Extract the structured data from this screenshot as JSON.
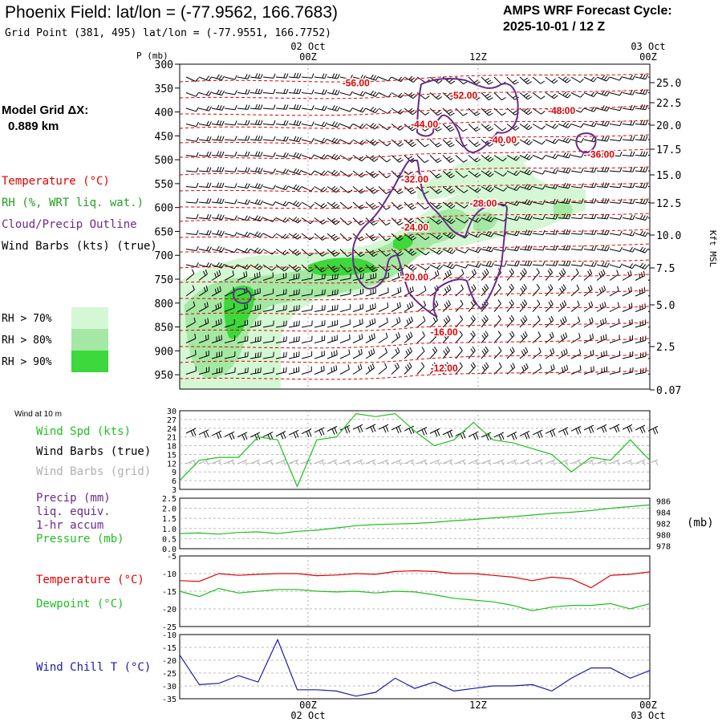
{
  "header": {
    "title": "Phoenix Field:  lat/lon = (-77.9562, 166.7683)",
    "subtitle": "Grid Point (381, 495) lat/lon = (-77.9551, 166.7752)",
    "cycle_line1": "AMPS WRF Forecast Cycle:",
    "cycle_line2": "2025-10-01 / 12  Z"
  },
  "model_grid": {
    "line1": "Model Grid ΔX:",
    "line2": "0.889 km"
  },
  "colors": {
    "temperature": "#e00000",
    "rh": "#1fa01f",
    "cloud": "#6a2a8c",
    "wind_true": "#000000",
    "wind_grid": "#b0b0b0",
    "pressure": "#1fbf1f",
    "dewpoint": "#1fbf1f",
    "windchill": "#1a1aa8",
    "rh70": "#d4f7d4",
    "rh80": "#a4e8a4",
    "rh90": "#3cd83c"
  },
  "time_axis": {
    "date_start": "02 Oct",
    "date_end": "03 Oct",
    "ticks": [
      "00Z",
      "12Z",
      "00Z"
    ]
  },
  "chart_data": [
    {
      "id": "upper-air",
      "type": "contour",
      "y_left_title": "P (mb)",
      "y_left_ticks": [
        300,
        350,
        400,
        450,
        500,
        550,
        600,
        650,
        700,
        750,
        800,
        850,
        900,
        950
      ],
      "y_right_ticks": [
        "25.0",
        "22.5",
        "20.0",
        "17.5",
        "15.0",
        "12.5",
        "10.0",
        "7.5",
        "5.0",
        "2.5",
        "0.07"
      ],
      "y_right_title": "Kft MSL",
      "legend": {
        "temperature": "Temperature (°C)",
        "rh": "RH (%, WRT liq. wat.)",
        "cloud": "Cloud/Precip Outline",
        "wind": "Wind Barbs (kts) (true)",
        "rh70": "RH > 70%",
        "rh80": "RH > 80%",
        "rh90": "RH > 90%"
      },
      "isotherm_labels": [
        {
          "label": "-56.00",
          "t": 9,
          "p": 338
        },
        {
          "label": "-52.00",
          "t": 14.5,
          "p": 364
        },
        {
          "label": "-48.00",
          "t": 19.5,
          "p": 396
        },
        {
          "label": "-44.00",
          "t": 12.5,
          "p": 424
        },
        {
          "label": "-40.00",
          "t": 16.5,
          "p": 457
        },
        {
          "label": "-36.00",
          "t": 21.5,
          "p": 487
        },
        {
          "label": "-32.00",
          "t": 12,
          "p": 539
        },
        {
          "label": "-28.00",
          "t": 15.5,
          "p": 590
        },
        {
          "label": "-24.00",
          "t": 12,
          "p": 640
        },
        {
          "label": "-20.00",
          "t": 12,
          "p": 744
        },
        {
          "label": "-16.00",
          "t": 13.5,
          "p": 859
        },
        {
          "label": "-12.00",
          "t": 13.5,
          "p": 935
        }
      ]
    },
    {
      "id": "wind10m",
      "type": "line",
      "title": "Wind at 10 m",
      "legend": [
        "Wind Spd (kts)",
        "Wind Barbs (true)",
        "Wind Barbs (grid)"
      ],
      "ylim": [
        3,
        30
      ],
      "y_ticks": [
        3,
        6,
        9,
        12,
        15,
        18,
        21,
        24,
        27,
        30
      ],
      "x": [
        0,
        1,
        2,
        3,
        4,
        5,
        6,
        7,
        8,
        9,
        10,
        11,
        12,
        13,
        14,
        15,
        16,
        17,
        18,
        19,
        20,
        21,
        22,
        23,
        24
      ],
      "series": [
        {
          "name": "Wind Spd (kts)",
          "values": [
            6,
            13,
            14,
            14,
            21,
            20,
            4,
            20,
            21,
            29,
            28,
            29,
            23,
            18,
            20,
            26,
            20,
            19,
            17,
            15,
            9,
            14,
            13,
            20,
            13
          ]
        }
      ]
    },
    {
      "id": "precip-pressure",
      "type": "line",
      "legend": [
        "Precip (mm)",
        "liq. equiv.",
        "1-hr accum",
        "Pressure (mb)"
      ],
      "y_left_ticks": [
        "0.0",
        "0.5",
        "1.0",
        "1.5",
        "2.0",
        "2.5"
      ],
      "y_left_lim": [
        0,
        2.5
      ],
      "y_right_ticks": [
        978,
        980,
        982,
        984,
        986
      ],
      "y_right_lim": [
        977.5,
        986.5
      ],
      "y_right_title": "(mb)",
      "x": [
        0,
        1,
        2,
        3,
        4,
        5,
        6,
        7,
        8,
        9,
        10,
        11,
        12,
        13,
        14,
        15,
        16,
        17,
        18,
        19,
        20,
        21,
        22,
        23,
        24
      ],
      "series": [
        {
          "name": "Precip (mm)",
          "values": [
            0,
            0,
            0,
            0,
            0,
            0,
            0,
            0,
            0,
            0,
            0,
            0,
            0,
            0,
            0,
            0,
            0,
            0,
            0,
            0,
            0,
            0,
            0,
            0,
            0
          ]
        },
        {
          "name": "Pressure (mb)",
          "values": [
            980.2,
            980.3,
            980.1,
            980.4,
            980.5,
            980.2,
            980.6,
            980.8,
            981.2,
            981.6,
            981.8,
            981.9,
            982.0,
            982.2,
            982.5,
            982.7,
            983.0,
            983.2,
            983.5,
            983.8,
            984.0,
            984.3,
            984.7,
            985.0,
            985.3
          ]
        }
      ]
    },
    {
      "id": "temp-dewpoint",
      "type": "line",
      "legend": [
        "Temperature (°C)",
        "Dewpoint (°C)"
      ],
      "ylim": [
        -25,
        -5
      ],
      "y_ticks": [
        -5,
        -10,
        -15,
        -20,
        -25
      ],
      "x": [
        0,
        1,
        2,
        3,
        4,
        5,
        6,
        7,
        8,
        9,
        10,
        11,
        12,
        13,
        14,
        15,
        16,
        17,
        18,
        19,
        20,
        21,
        22,
        23,
        24
      ],
      "series": [
        {
          "name": "Temperature (°C)",
          "values": [
            -12.0,
            -12.2,
            -10.0,
            -10.5,
            -10.2,
            -10.0,
            -10.0,
            -10.6,
            -10.4,
            -10.0,
            -10.2,
            -9.4,
            -9.2,
            -9.4,
            -10.0,
            -10.0,
            -10.5,
            -11.0,
            -12.0,
            -11.0,
            -11.5,
            -14.0,
            -10.5,
            -10.2,
            -9.5
          ]
        },
        {
          "name": "Dewpoint (°C)",
          "values": [
            -15.0,
            -16.5,
            -14.2,
            -15.5,
            -15.0,
            -14.5,
            -14.5,
            -15.0,
            -15.2,
            -15.0,
            -15.5,
            -15.0,
            -15.2,
            -16.0,
            -17.0,
            -17.5,
            -18.0,
            -19.0,
            -20.5,
            -19.5,
            -19.0,
            -19.0,
            -18.5,
            -20.0,
            -18.5
          ]
        }
      ]
    },
    {
      "id": "windchill",
      "type": "line",
      "legend": [
        "Wind Chill T (°C)"
      ],
      "ylim": [
        -35,
        -10
      ],
      "y_ticks": [
        -10,
        -15,
        -20,
        -25,
        -30,
        -35
      ],
      "x": [
        0,
        1,
        2,
        3,
        4,
        5,
        6,
        7,
        8,
        9,
        10,
        11,
        12,
        13,
        14,
        15,
        16,
        17,
        18,
        19,
        20,
        21,
        22,
        23,
        24
      ],
      "series": [
        {
          "name": "Wind Chill T (°C)",
          "values": [
            -18,
            -29.5,
            -29,
            -26,
            -28.5,
            -12,
            -31.5,
            -31.5,
            -32,
            -34,
            -32.5,
            -27,
            -31,
            -28.5,
            -32,
            -31,
            -30,
            -30,
            -29.5,
            -32,
            -27,
            -23,
            -23,
            -27,
            -24
          ]
        }
      ]
    }
  ]
}
